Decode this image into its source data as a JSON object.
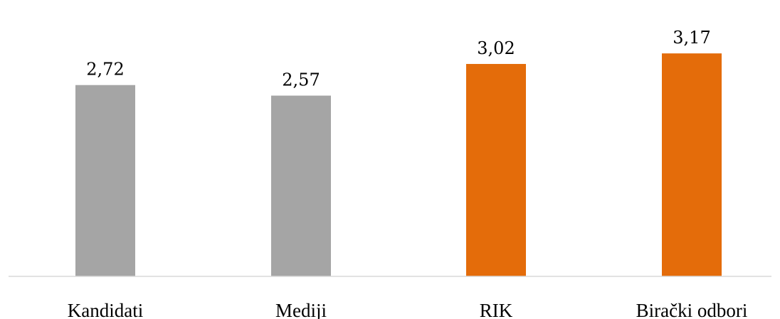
{
  "chart_data": {
    "type": "bar",
    "categories": [
      "Kandidati",
      "Mediji",
      "RIK",
      "Birački odbori"
    ],
    "values": [
      2.72,
      2.57,
      3.02,
      3.17
    ],
    "value_labels": [
      "2,72",
      "2,57",
      "3,02",
      "3,17"
    ],
    "ylim": [
      0,
      3.5
    ],
    "grid": false,
    "legend": "none",
    "title": "",
    "xlabel": "",
    "ylabel": ""
  },
  "colors": {
    "bar_gray": "#a5a5a5",
    "bar_orange": "#e46c0a",
    "axis_line": "#d9d9d9",
    "text": "#000000"
  },
  "bar_colors": [
    "#a5a5a5",
    "#a5a5a5",
    "#e46c0a",
    "#e46c0a"
  ]
}
